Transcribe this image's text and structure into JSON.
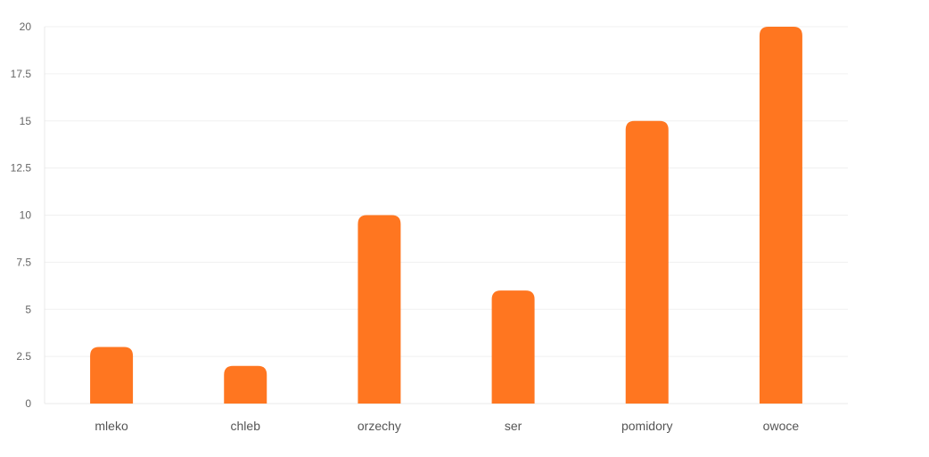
{
  "chart_data": {
    "type": "bar",
    "categories": [
      "mleko",
      "chleb",
      "orzechy",
      "ser",
      "pomidory",
      "owoce"
    ],
    "values": [
      3,
      2,
      10,
      6,
      15,
      20
    ],
    "title": "",
    "xlabel": "",
    "ylabel": "",
    "ylim": [
      0,
      20
    ],
    "yticks": [
      "0",
      "2.5",
      "5",
      "7.5",
      "10",
      "12.5",
      "15",
      "17.5",
      "20"
    ],
    "grid": true,
    "legend": "none",
    "bar_color": "#ff7620"
  }
}
